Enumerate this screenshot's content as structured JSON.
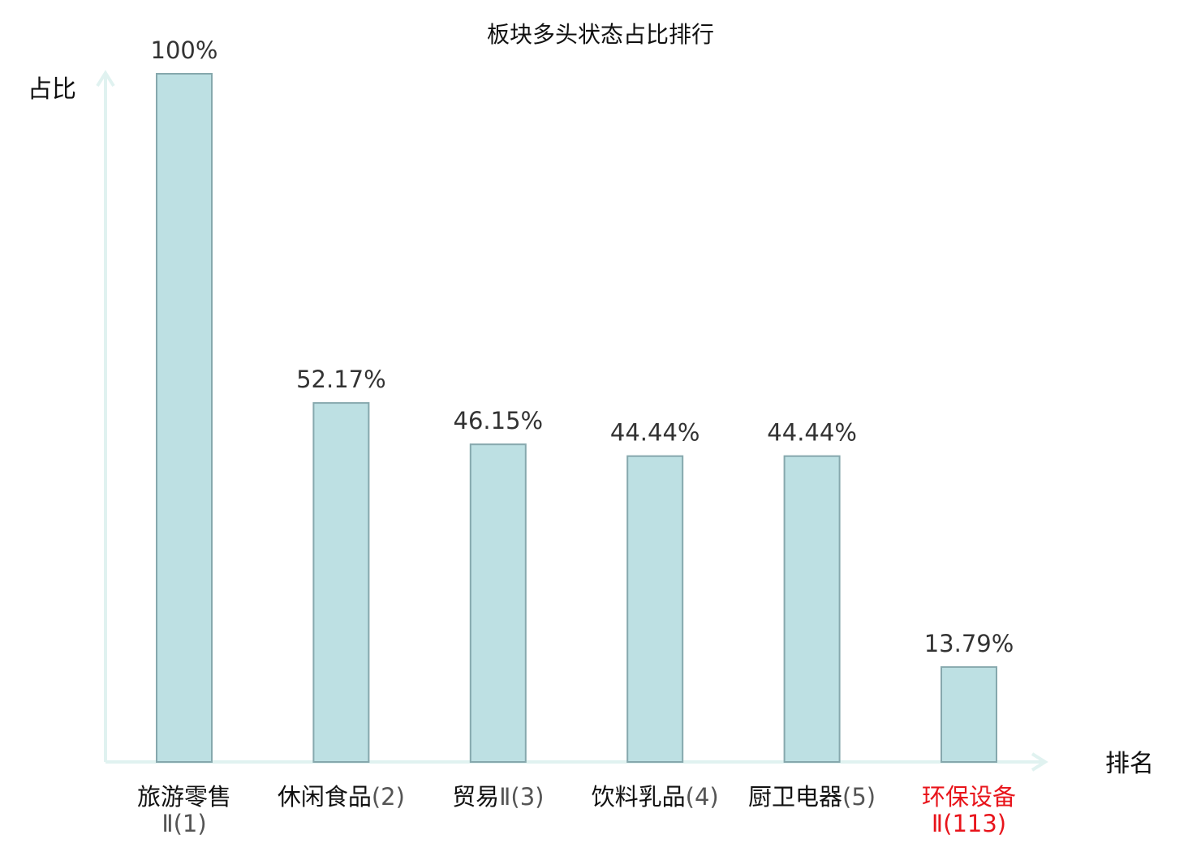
{
  "chart_data": {
    "type": "bar",
    "title": "板块多头状态占比排行",
    "ylabel": "占比",
    "xlabel": "排名",
    "ylim": [
      0,
      100
    ],
    "grid": false,
    "categories": [
      {
        "name": "旅游零售",
        "suffix": "Ⅱ(1)",
        "highlight": false
      },
      {
        "name": "休闲食品",
        "suffix": "(2)",
        "highlight": false
      },
      {
        "name": "贸易",
        "suffix": "Ⅱ(3)",
        "highlight": false
      },
      {
        "name": "饮料乳品",
        "suffix": "(4)",
        "highlight": false
      },
      {
        "name": "厨卫电器",
        "suffix": "(5)",
        "highlight": false
      },
      {
        "name": "环保设备",
        "suffix": "Ⅱ(113)",
        "highlight": true
      }
    ],
    "values": [
      100,
      52.17,
      46.15,
      44.44,
      44.44,
      13.79
    ],
    "value_labels": [
      "100%",
      "52.17%",
      "46.15%",
      "44.44%",
      "44.44%",
      "13.79%"
    ],
    "colors": {
      "bar_fill": "#bde0e3",
      "bar_stroke": "#86a8ad",
      "axis": "#e0f2f0",
      "text": "#111111",
      "value_text": "#333333",
      "suffix_text": "#555555",
      "highlight": "#e8141b"
    }
  }
}
